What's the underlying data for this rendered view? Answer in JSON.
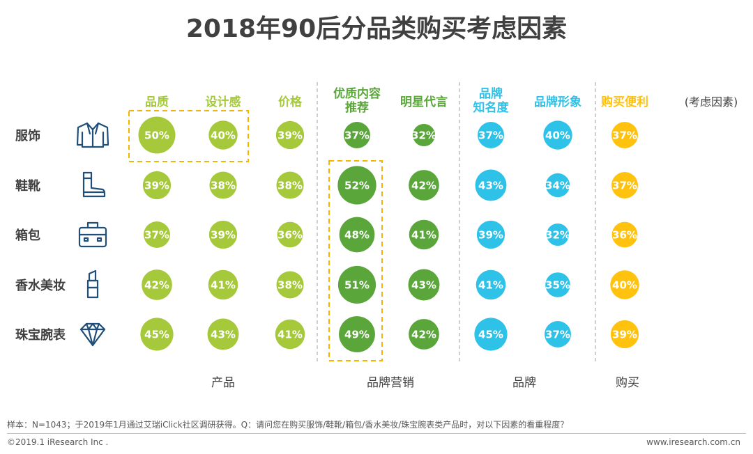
{
  "title": "2018年90后分品类购买考虑因素",
  "footnote": "样本：N=1043；于2019年1月通过艾瑞iClick社区调研获得。Q：请问您在购买服饰/鞋靴/箱包/香水美妆/珠宝腕表类产品时，对以下因素的看重程度？",
  "copyright": "©2019.1 iResearch Inc .",
  "website": "www.iresearch.com.cn",
  "colors": {
    "product": "#a5c93a",
    "marketing": "#5aa63a",
    "brand": "#2ec2e8",
    "purchase": "#ffc20e",
    "icon": "#1f4e79",
    "label": "#404040",
    "highlight_box": "#f5b400"
  },
  "chart_data": {
    "type": "bubble-matrix",
    "title": "2018年90后分品类购买考虑因素",
    "unit": "%",
    "legend_label": "(考虑因素)",
    "categories": [
      {
        "label": "服饰",
        "icon": "jacket-icon"
      },
      {
        "label": "鞋靴",
        "icon": "boot-icon"
      },
      {
        "label": "箱包",
        "icon": "bag-icon"
      },
      {
        "label": "香水美妆",
        "icon": "lipstick-icon"
      },
      {
        "label": "珠宝腕表",
        "icon": "diamond-icon"
      }
    ],
    "factors": [
      {
        "label": "品质",
        "group": "产品"
      },
      {
        "label": "设计感",
        "group": "产品"
      },
      {
        "label": "价格",
        "group": "产品"
      },
      {
        "label": "优质内容推荐",
        "label_lines": [
          "优质内容",
          "推荐"
        ],
        "group": "品牌营销"
      },
      {
        "label": "明星代言",
        "group": "品牌营销"
      },
      {
        "label": "品牌知名度",
        "label_lines": [
          "品牌",
          "知名度"
        ],
        "group": "品牌"
      },
      {
        "label": "品牌形象",
        "group": "品牌"
      },
      {
        "label": "购买便利",
        "group": "购买"
      }
    ],
    "groups": [
      {
        "name": "产品",
        "color_key": "product"
      },
      {
        "name": "品牌营销",
        "color_key": "marketing"
      },
      {
        "name": "品牌",
        "color_key": "brand"
      },
      {
        "name": "购买",
        "color_key": "purchase"
      }
    ],
    "values": [
      [
        50,
        40,
        39,
        37,
        32,
        37,
        40,
        37
      ],
      [
        39,
        38,
        38,
        52,
        42,
        43,
        34,
        37
      ],
      [
        37,
        39,
        36,
        48,
        41,
        39,
        32,
        36
      ],
      [
        42,
        41,
        38,
        51,
        43,
        41,
        35,
        40
      ],
      [
        45,
        43,
        41,
        49,
        42,
        45,
        37,
        39
      ]
    ],
    "highlights": [
      {
        "category_index": 0,
        "factor_indices": [
          0,
          1
        ]
      },
      {
        "category_index_range": [
          1,
          4
        ],
        "factor_indices": [
          3
        ]
      }
    ]
  }
}
